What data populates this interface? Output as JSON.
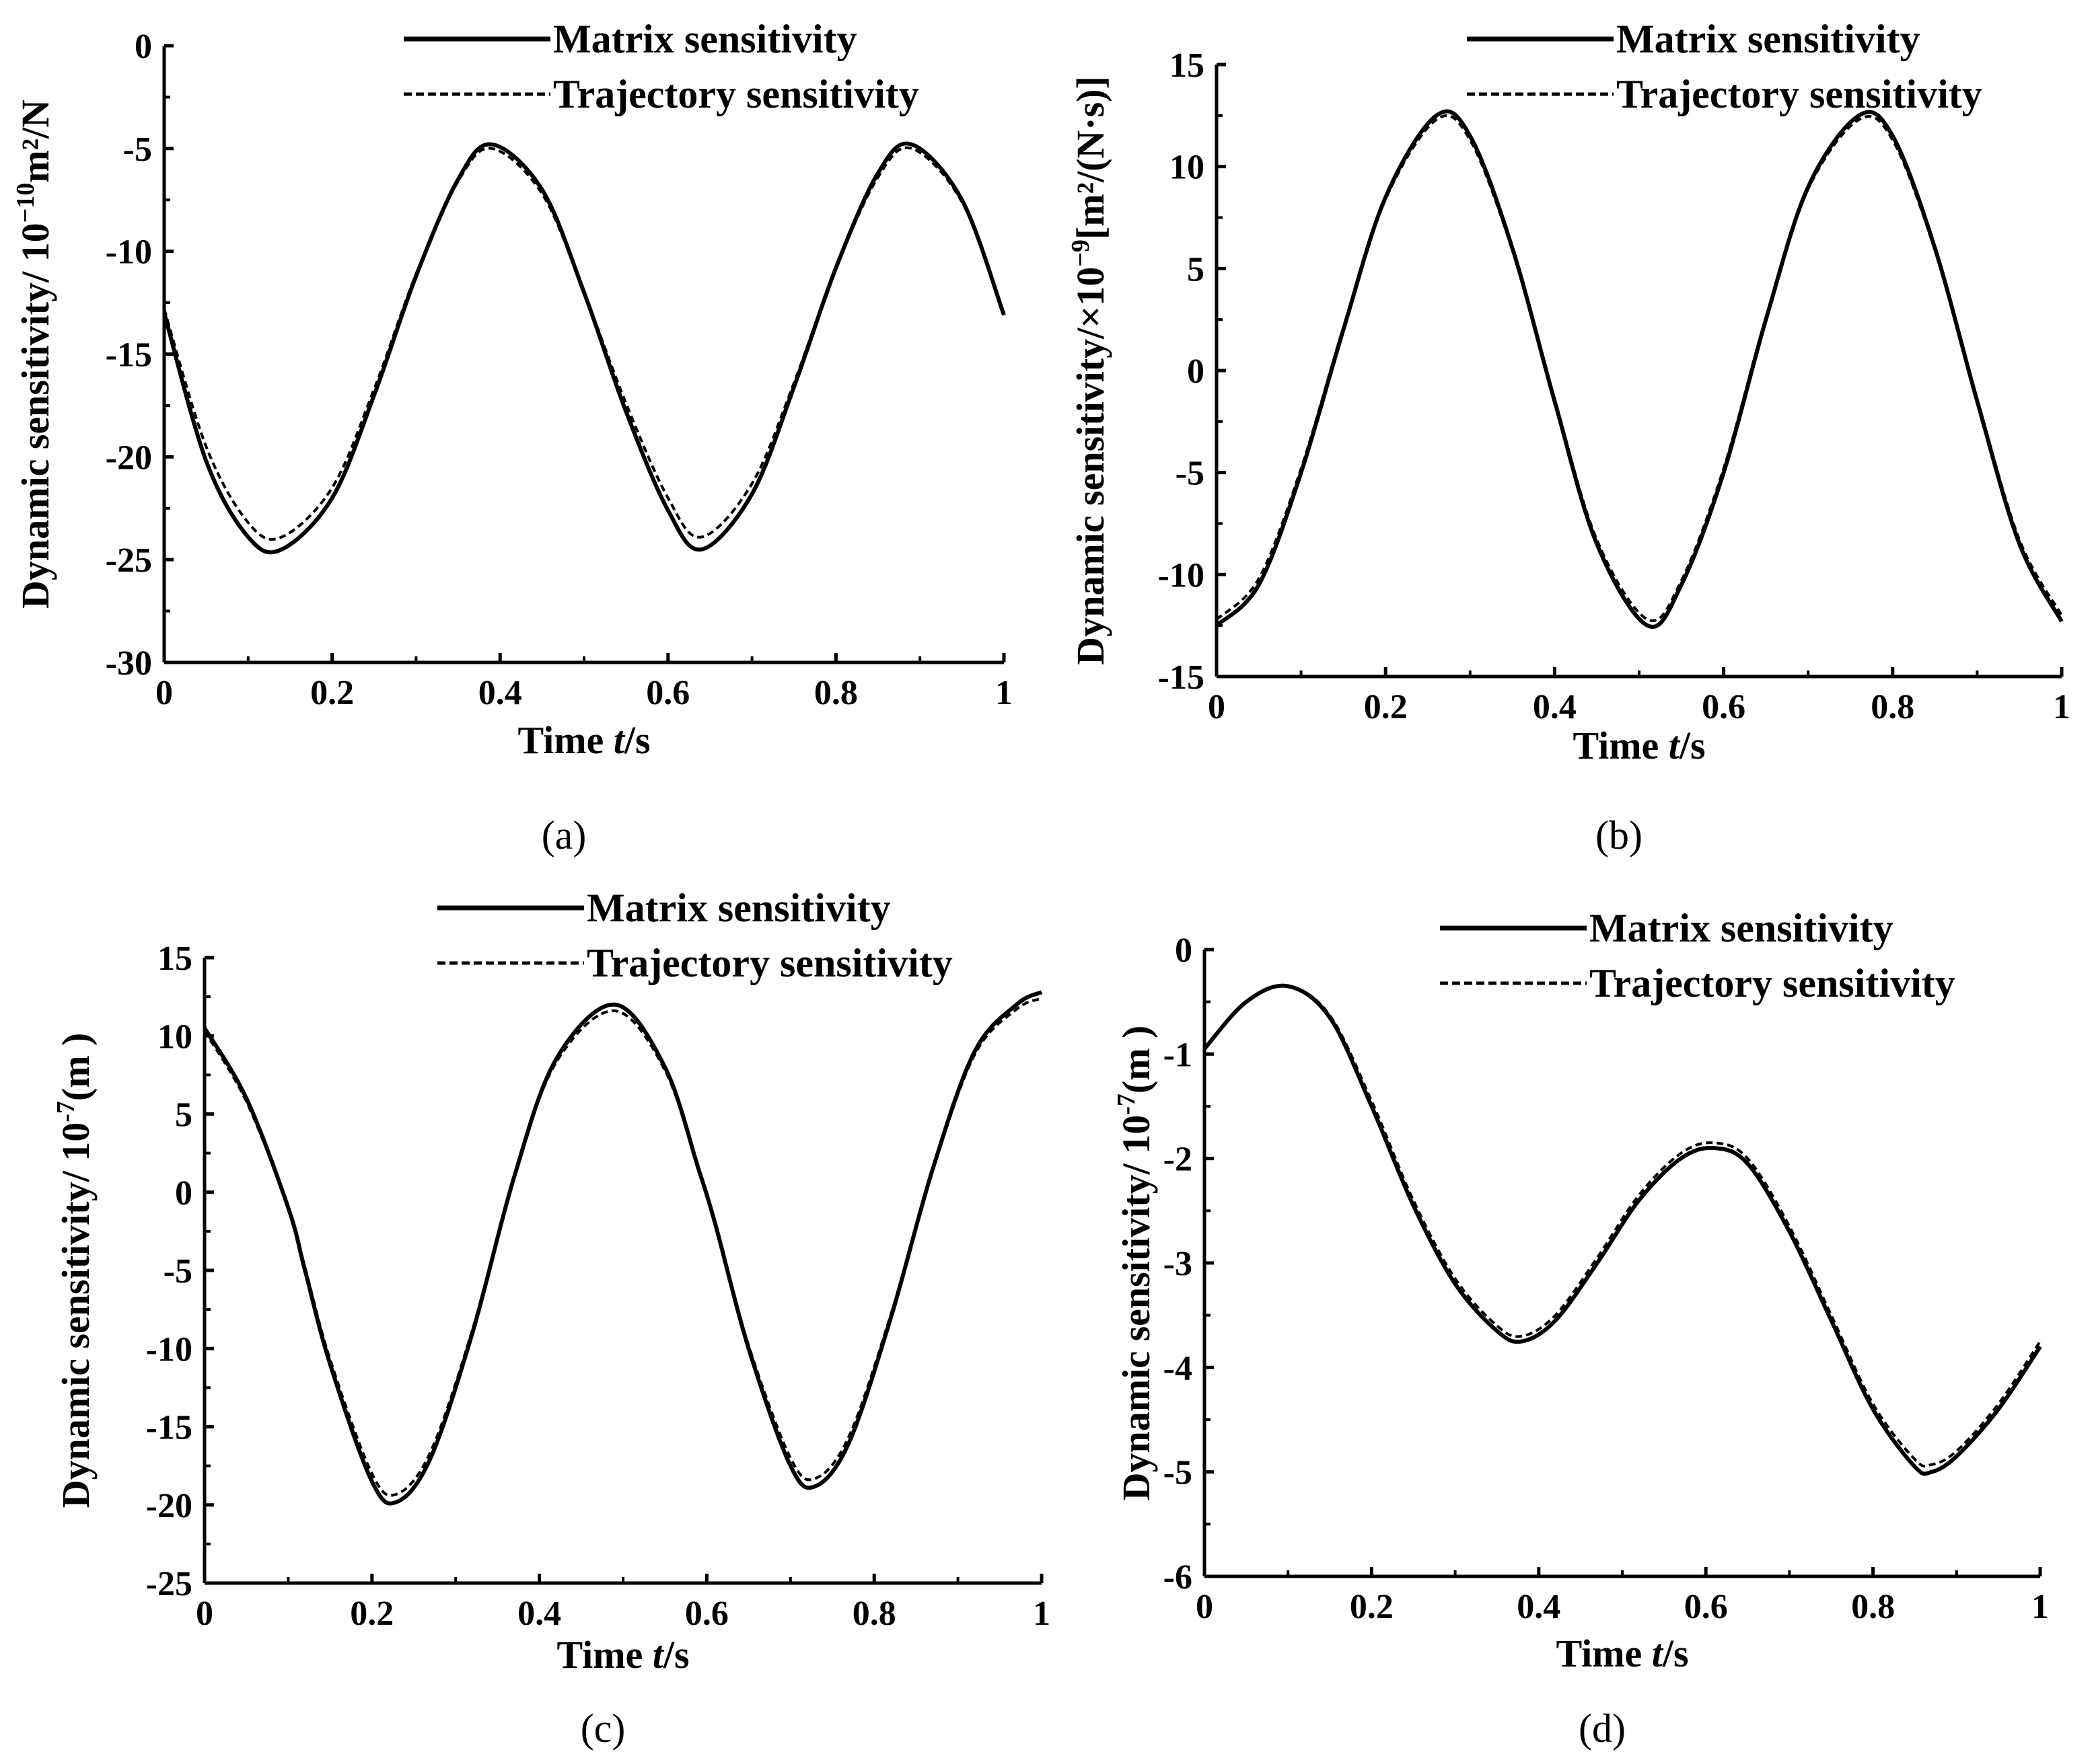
{
  "figure": {
    "series_names": [
      "Matrix sensitivity",
      "Trajectory sensitivity"
    ]
  },
  "chart_data": [
    {
      "type": "line",
      "panel": "(a)",
      "xlabel": "Time t/s",
      "xlabel_parts": [
        "Time ",
        "t",
        "/s"
      ],
      "ylabel": "Dynamic sensitivity/ 10^-10 m²/N",
      "ylabel_parts": {
        "main": "Dynamic sensitivity/ 10",
        "sup": "−10",
        "after": "m²/N"
      },
      "xlim": [
        0,
        1
      ],
      "ylim": [
        -30,
        0
      ],
      "xticks": [
        0,
        0.2,
        0.4,
        0.6,
        0.8,
        1
      ],
      "xtick_labels": [
        "0",
        "0.2",
        "0.4",
        "0.6",
        "0.8",
        "1"
      ],
      "yticks": [
        -30,
        -25,
        -20,
        -15,
        -10,
        -5,
        0
      ],
      "ytick_labels": [
        "-30",
        "-25",
        "-20",
        "-15",
        "-10",
        "-5",
        "0"
      ],
      "legend_position": "top-right",
      "series": [
        {
          "name": "Matrix sensitivity",
          "style": "solid",
          "x": [
            0,
            0.05,
            0.1,
            0.14,
            0.2,
            0.25,
            0.3,
            0.35,
            0.39,
            0.45,
            0.5,
            0.55,
            0.6,
            0.64,
            0.7,
            0.75,
            0.8,
            0.85,
            0.89,
            0.95,
            1.0
          ],
          "y": [
            -13.0,
            -20.2,
            -23.9,
            -24.5,
            -22.0,
            -17.0,
            -11.2,
            -6.5,
            -4.8,
            -7.0,
            -12.0,
            -17.8,
            -22.6,
            -24.5,
            -21.8,
            -16.6,
            -10.8,
            -6.2,
            -4.8,
            -7.5,
            -13.1
          ]
        },
        {
          "name": "Trajectory sensitivity",
          "style": "dashed",
          "x": [
            0,
            0.05,
            0.1,
            0.14,
            0.2,
            0.25,
            0.3,
            0.35,
            0.39,
            0.45,
            0.5,
            0.55,
            0.6,
            0.64,
            0.7,
            0.75,
            0.8,
            0.85,
            0.89,
            0.95,
            1.0
          ],
          "y": [
            -12.8,
            -19.5,
            -23.2,
            -23.9,
            -21.5,
            -16.7,
            -11.1,
            -6.6,
            -5.0,
            -7.2,
            -12.0,
            -17.4,
            -22.0,
            -23.9,
            -21.3,
            -16.4,
            -10.8,
            -6.4,
            -5.0,
            -7.6,
            -13.0
          ]
        }
      ]
    },
    {
      "type": "line",
      "panel": "(b)",
      "xlabel": "Time t/s",
      "xlabel_parts": [
        "Time ",
        "t",
        "/s"
      ],
      "ylabel": "Dynamic sensitivity/×10^-9 [m²/(N·s)]",
      "ylabel_parts": {
        "main": "Dynamic sensitivity/×10",
        "sup": "−9",
        "after": "[m²/(N·s)]"
      },
      "xlim": [
        0,
        1
      ],
      "ylim": [
        -15,
        15
      ],
      "xticks": [
        0,
        0.2,
        0.4,
        0.6,
        0.8,
        1
      ],
      "xtick_labels": [
        "0",
        "0.2",
        "0.4",
        "0.6",
        "0.8",
        "1"
      ],
      "yticks": [
        -15,
        -10,
        -5,
        0,
        5,
        10,
        15
      ],
      "ytick_labels": [
        "-15",
        "-10",
        "-5",
        "0",
        "5",
        "10",
        "15"
      ],
      "legend_position": "top-right",
      "series": [
        {
          "name": "Matrix sensitivity",
          "style": "solid",
          "x": [
            0,
            0.05,
            0.1,
            0.15,
            0.2,
            0.26,
            0.3,
            0.35,
            0.4,
            0.45,
            0.51,
            0.55,
            0.6,
            0.65,
            0.7,
            0.76,
            0.8,
            0.85,
            0.9,
            0.95,
            1.0
          ],
          "y": [
            -12.5,
            -10.5,
            -5.0,
            2.0,
            8.5,
            12.5,
            11.5,
            6.0,
            -1.5,
            -8.5,
            -12.5,
            -10.5,
            -5.0,
            2.5,
            9.0,
            12.5,
            11.5,
            6.0,
            -1.5,
            -8.5,
            -12.3
          ]
        },
        {
          "name": "Trajectory sensitivity",
          "style": "dashed",
          "x": [
            0,
            0.05,
            0.1,
            0.15,
            0.2,
            0.26,
            0.3,
            0.35,
            0.4,
            0.45,
            0.51,
            0.55,
            0.6,
            0.65,
            0.7,
            0.76,
            0.8,
            0.85,
            0.9,
            0.95,
            1.0
          ],
          "y": [
            -12.2,
            -10.2,
            -4.8,
            2.1,
            8.4,
            12.3,
            11.3,
            5.9,
            -1.4,
            -8.3,
            -12.2,
            -10.3,
            -4.8,
            2.6,
            8.9,
            12.3,
            11.3,
            5.9,
            -1.4,
            -8.3,
            -12.0
          ]
        }
      ]
    },
    {
      "type": "line",
      "panel": "(c)",
      "xlabel": "Time t/s",
      "xlabel_parts": [
        "Time ",
        "t",
        "/s"
      ],
      "ylabel": "Dynamic sensitivity/ 10^-7 (m )",
      "ylabel_parts": {
        "main": "Dynamic sensitivity/ 10",
        "sup": "-7",
        "after": "(m )"
      },
      "xlim": [
        0,
        1
      ],
      "ylim": [
        -25,
        15
      ],
      "xticks": [
        0,
        0.2,
        0.4,
        0.6,
        0.8,
        1
      ],
      "xtick_labels": [
        "0",
        "0.2",
        "0.4",
        "0.6",
        "0.8",
        "1"
      ],
      "yticks": [
        -25,
        -20,
        -15,
        -10,
        -5,
        0,
        5,
        10,
        15
      ],
      "ytick_labels": [
        "-25",
        "-20",
        "-15",
        "-10",
        "-5",
        "0",
        "5",
        "10",
        "15"
      ],
      "legend_position": "top-right",
      "series": [
        {
          "name": "Matrix sensitivity",
          "style": "solid",
          "x": [
            0,
            0.05,
            0.1,
            0.12,
            0.15,
            0.2,
            0.23,
            0.27,
            0.32,
            0.37,
            0.42,
            0.49,
            0.55,
            0.59,
            0.61,
            0.65,
            0.7,
            0.73,
            0.77,
            0.82,
            0.87,
            0.92,
            0.97,
            1.0
          ],
          "y": [
            10.5,
            6.0,
            -1.0,
            -5.0,
            -11.0,
            -18.5,
            -19.8,
            -17.0,
            -9.0,
            1.0,
            8.5,
            12.0,
            8.0,
            1.5,
            -2.0,
            -10.0,
            -17.5,
            -18.8,
            -16.0,
            -8.0,
            1.5,
            9.0,
            12.0,
            12.8
          ]
        },
        {
          "name": "Trajectory sensitivity",
          "style": "dashed",
          "x": [
            0,
            0.05,
            0.1,
            0.12,
            0.15,
            0.2,
            0.23,
            0.27,
            0.32,
            0.37,
            0.42,
            0.49,
            0.55,
            0.59,
            0.61,
            0.65,
            0.7,
            0.73,
            0.77,
            0.82,
            0.87,
            0.92,
            0.97,
            1.0
          ],
          "y": [
            10.3,
            5.8,
            -1.0,
            -4.8,
            -10.7,
            -18.0,
            -19.3,
            -16.6,
            -8.8,
            1.0,
            8.3,
            11.6,
            7.8,
            1.4,
            -2.0,
            -9.8,
            -17.0,
            -18.3,
            -15.6,
            -7.8,
            1.4,
            8.8,
            11.7,
            12.4
          ]
        }
      ]
    },
    {
      "type": "line",
      "panel": "(d)",
      "xlabel": "Time t/s",
      "xlabel_parts": [
        "Time ",
        "t",
        "/s"
      ],
      "ylabel": "Dynamic sensitivity/ 10^-7 (m )",
      "ylabel_parts": {
        "main": "Dynamic sensitivity/ 10",
        "sup": "-7",
        "after": "(m )"
      },
      "xlim": [
        0,
        1
      ],
      "ylim": [
        -6,
        0
      ],
      "xticks": [
        0,
        0.2,
        0.4,
        0.6,
        0.8,
        1
      ],
      "xtick_labels": [
        "0",
        "0.2",
        "0.4",
        "0.6",
        "0.8",
        "1"
      ],
      "yticks": [
        -6,
        -5,
        -4,
        -3,
        -2,
        -1,
        0
      ],
      "ytick_labels": [
        "-6",
        "-5",
        "-4",
        "-3",
        "-2",
        "-1",
        "0"
      ],
      "legend_position": "top-right",
      "series": [
        {
          "name": "Matrix sensitivity",
          "style": "solid",
          "x": [
            0,
            0.05,
            0.1,
            0.15,
            0.2,
            0.25,
            0.3,
            0.35,
            0.38,
            0.42,
            0.47,
            0.52,
            0.57,
            0.61,
            0.65,
            0.7,
            0.75,
            0.8,
            0.85,
            0.87,
            0.9,
            0.95,
            1.0
          ],
          "y": [
            -0.95,
            -0.5,
            -0.35,
            -0.65,
            -1.5,
            -2.45,
            -3.2,
            -3.65,
            -3.75,
            -3.55,
            -3.0,
            -2.4,
            -2.0,
            -1.9,
            -2.05,
            -2.7,
            -3.55,
            -4.4,
            -4.95,
            -5.0,
            -4.85,
            -4.4,
            -3.8
          ]
        },
        {
          "name": "Trajectory sensitivity",
          "style": "dashed",
          "x": [
            0,
            0.05,
            0.1,
            0.15,
            0.2,
            0.25,
            0.3,
            0.35,
            0.38,
            0.42,
            0.47,
            0.52,
            0.57,
            0.61,
            0.65,
            0.7,
            0.75,
            0.8,
            0.85,
            0.87,
            0.9,
            0.95,
            1.0
          ],
          "y": [
            -0.95,
            -0.5,
            -0.35,
            -0.63,
            -1.45,
            -2.4,
            -3.15,
            -3.6,
            -3.7,
            -3.5,
            -2.95,
            -2.35,
            -1.95,
            -1.85,
            -2.0,
            -2.65,
            -3.5,
            -4.35,
            -4.88,
            -4.93,
            -4.8,
            -4.35,
            -3.75
          ]
        }
      ]
    }
  ]
}
